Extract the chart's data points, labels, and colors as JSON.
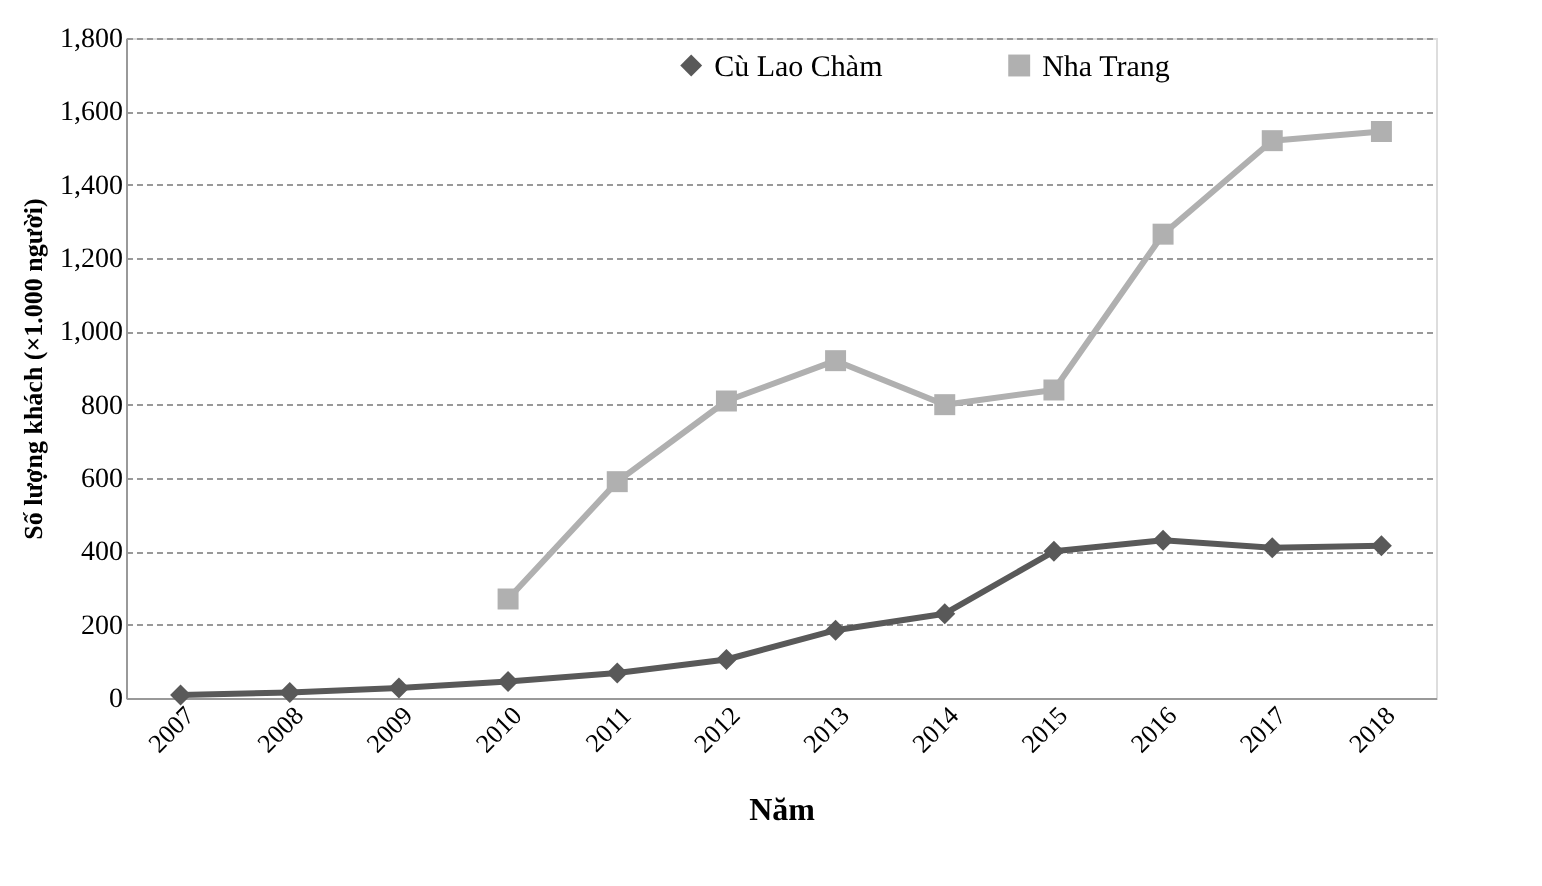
{
  "chart_data": {
    "type": "line",
    "xlabel": "Năm",
    "ylabel": "Số lượng khách (×1.000 người)",
    "categories": [
      "2007",
      "2008",
      "2009",
      "2010",
      "2011",
      "2012",
      "2013",
      "2014",
      "2015",
      "2016",
      "2017",
      "2018"
    ],
    "series": [
      {
        "name": "Cù Lao Chàm",
        "color": "#595959",
        "marker": "diamond",
        "values": [
          8,
          15,
          27,
          45,
          68,
          105,
          185,
          230,
          400,
          430,
          410,
          415
        ]
      },
      {
        "name": "Nha Trang",
        "color": "#b0b0b0",
        "marker": "square",
        "values": [
          null,
          null,
          null,
          270,
          590,
          810,
          920,
          800,
          840,
          1265,
          1520,
          1545
        ]
      }
    ],
    "ylim": [
      0,
      1800
    ],
    "yticks": [
      0,
      200,
      400,
      600,
      800,
      {
        "value": 1000,
        "label": "1,000"
      },
      {
        "value": 1200,
        "label": "1,200"
      },
      {
        "value": 1400,
        "label": "1,400"
      },
      {
        "value": 1600,
        "label": "1,600"
      },
      {
        "value": 1800,
        "label": "1,800"
      }
    ],
    "grid": "y",
    "legend": "top",
    "line_style": "solid"
  }
}
